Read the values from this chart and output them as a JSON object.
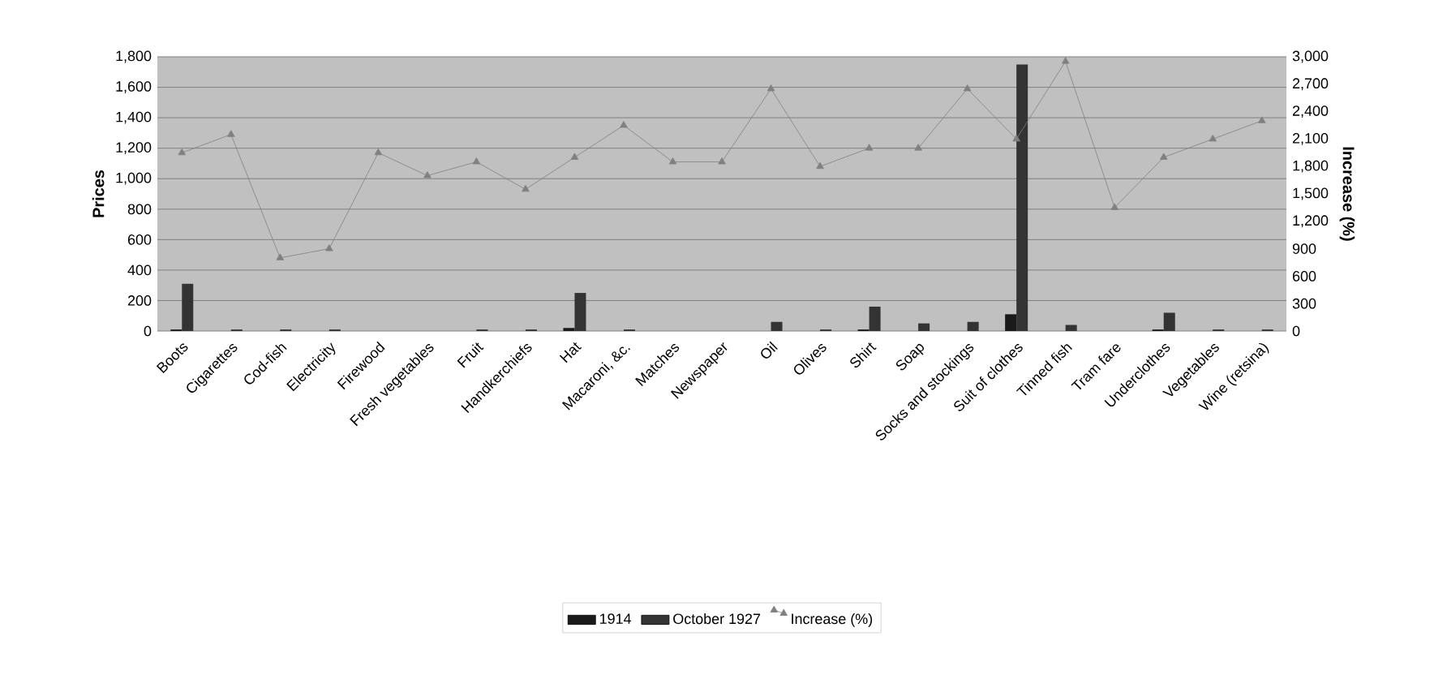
{
  "chart_data": {
    "type": "bar",
    "xlabel": null,
    "ylabel": "Prices",
    "y2label": "Increase (%)",
    "categories": [
      "Boots",
      "Cigarettes",
      "Cod-fish",
      "Electricity",
      "Firewood",
      "Fresh vegetables",
      "Fruit",
      "Handkerchiefs",
      "Hat",
      "Macaroni, &c.",
      "Matches",
      "Newspaper",
      "Oil",
      "Olives",
      "Shirt",
      "Soap",
      "Socks and stockings",
      "Suit of clothes",
      "Tinned fish",
      "Tram fare",
      "Underclothes",
      "Vegetables",
      "Wine (retsina)"
    ],
    "series": [
      {
        "name": "1914",
        "color": "#1a1a1a",
        "values": [
          10,
          0,
          0,
          0,
          null,
          null,
          0,
          0,
          20,
          0,
          null,
          null,
          0,
          0,
          10,
          0,
          0,
          110,
          0,
          null,
          10,
          0,
          0
        ]
      },
      {
        "name": "October 1927",
        "color": "#333333",
        "values": [
          310,
          10,
          10,
          10,
          null,
          null,
          10,
          10,
          250,
          10,
          null,
          null,
          60,
          10,
          160,
          50,
          60,
          1750,
          40,
          null,
          120,
          10,
          10
        ]
      },
      {
        "name": "Increase (%)",
        "type": "line",
        "axis": "y2",
        "color": "#808080",
        "marker": "triangle",
        "values": [
          1950,
          2150,
          800,
          900,
          1950,
          1700,
          1850,
          1550,
          1900,
          2250,
          1850,
          1850,
          2650,
          1800,
          2000,
          2000,
          2650,
          2100,
          2950,
          1350,
          1900,
          2100,
          2300
        ]
      }
    ],
    "ylim": [
      0,
      1800
    ],
    "yticks": [
      {
        "value": 0,
        "label": "0"
      },
      {
        "value": 200,
        "label": "200"
      },
      {
        "value": 400,
        "label": "400"
      },
      {
        "value": 600,
        "label": "600"
      },
      {
        "value": 800,
        "label": "800"
      },
      {
        "value": 1000,
        "label": "1,000"
      },
      {
        "value": 1200,
        "label": "1,200"
      },
      {
        "value": 1400,
        "label": "1,400"
      },
      {
        "value": 1600,
        "label": "1,600"
      },
      {
        "value": 1800,
        "label": "1,800"
      }
    ],
    "y2lim": [
      0,
      3000
    ],
    "y2ticks": [
      {
        "value": 0,
        "label": "0"
      },
      {
        "value": 300,
        "label": "300"
      },
      {
        "value": 600,
        "label": "600"
      },
      {
        "value": 900,
        "label": "900"
      },
      {
        "value": 1200,
        "label": "1,200"
      },
      {
        "value": 1500,
        "label": "1,500"
      },
      {
        "value": 1800,
        "label": "1,800"
      },
      {
        "value": 2100,
        "label": "2,100"
      },
      {
        "value": 2400,
        "label": "2,400"
      },
      {
        "value": 2700,
        "label": "2,700"
      },
      {
        "value": 3000,
        "label": "3,000"
      }
    ],
    "grid": "y",
    "legend": "bottom"
  }
}
